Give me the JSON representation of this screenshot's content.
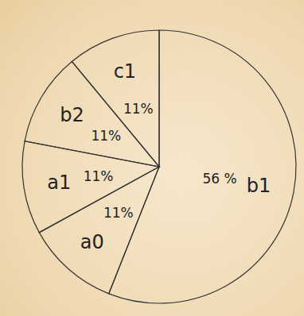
{
  "chart_data": {
    "type": "pie",
    "categories": [
      "b1",
      "a0",
      "a1",
      "b2",
      "c1"
    ],
    "values": [
      56,
      11,
      11,
      11,
      11
    ],
    "value_labels": [
      "56 %",
      "11%",
      "11%",
      "11%",
      "11%"
    ],
    "data_labels": true
  }
}
